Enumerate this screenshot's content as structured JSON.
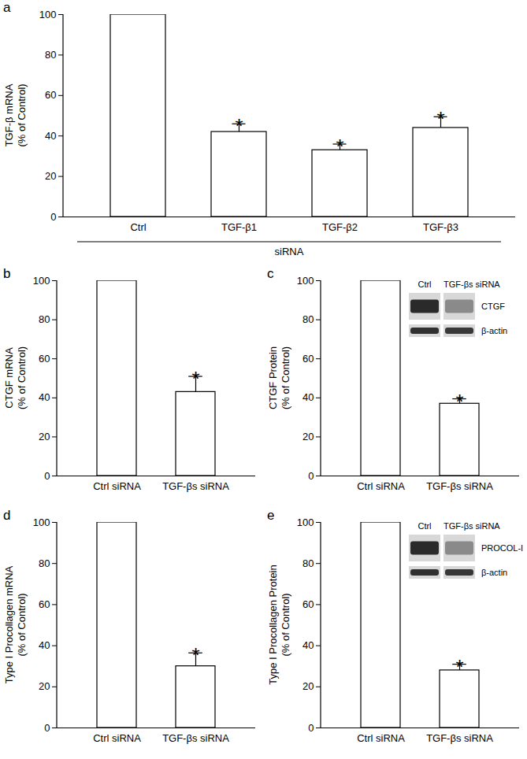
{
  "chart_data": [
    {
      "type": "bar",
      "title": "a",
      "ylabel": "TGF-β mRNA\n(% of Control)",
      "categories": [
        "Ctrl",
        "TGF-β1",
        "TGF-β2",
        "TGF-β3"
      ],
      "values": [
        100,
        42,
        33,
        44
      ],
      "errors": [
        null,
        4,
        3,
        5.5
      ],
      "significance": [
        null,
        "*",
        "*",
        "*"
      ],
      "group_label": "siRNA",
      "color": "#ffffff",
      "ylim": [
        0,
        100
      ],
      "yticks": [
        0,
        20,
        40,
        60,
        80,
        100
      ]
    },
    {
      "type": "bar",
      "title": "b",
      "ylabel": "CTGF mRNA\n(% of Control)",
      "categories": [
        "Ctrl siRNA",
        "TGF-βs siRNA"
      ],
      "values": [
        100,
        43
      ],
      "errors": [
        null,
        8
      ],
      "significance": [
        null,
        "*"
      ],
      "color": "#ffffff",
      "ylim": [
        0,
        100
      ],
      "yticks": [
        0,
        20,
        40,
        60,
        80,
        100
      ]
    },
    {
      "type": "bar",
      "title": "c",
      "ylabel": "CTGF Protein\n(% of Control)",
      "categories": [
        "Ctrl siRNA",
        "TGF-βs siRNA"
      ],
      "values": [
        100,
        37
      ],
      "errors": [
        null,
        2.5
      ],
      "significance": [
        null,
        "*"
      ],
      "inset": {
        "lanes": [
          "Ctrl",
          "TGF-βs siRNA"
        ],
        "bands": [
          "CTGF",
          "β-actin"
        ]
      },
      "color": "#ffffff",
      "ylim": [
        0,
        100
      ],
      "yticks": [
        0,
        20,
        40,
        60,
        80,
        100
      ]
    },
    {
      "type": "bar",
      "title": "d",
      "ylabel": "Type I Procollagen mRNA\n(% of Control)",
      "categories": [
        "Ctrl siRNA",
        "TGF-βs siRNA"
      ],
      "values": [
        100,
        30
      ],
      "errors": [
        null,
        6.5
      ],
      "significance": [
        null,
        "*"
      ],
      "color": "#ffffff",
      "ylim": [
        0,
        100
      ],
      "yticks": [
        0,
        20,
        40,
        60,
        80,
        100
      ]
    },
    {
      "type": "bar",
      "title": "e",
      "ylabel": "Type I Procollagen Protein\n(% of Control)",
      "categories": [
        "Ctrl siRNA",
        "TGF-βs siRNA"
      ],
      "values": [
        100,
        28
      ],
      "errors": [
        null,
        3
      ],
      "significance": [
        null,
        "*"
      ],
      "inset": {
        "lanes": [
          "Ctrl",
          "TGF-βs siRNA"
        ],
        "bands": [
          "PROCOL-I",
          "β-actin"
        ]
      },
      "color": "#ffffff",
      "ylim": [
        0,
        100
      ],
      "yticks": [
        0,
        20,
        40,
        60,
        80,
        100
      ]
    }
  ]
}
